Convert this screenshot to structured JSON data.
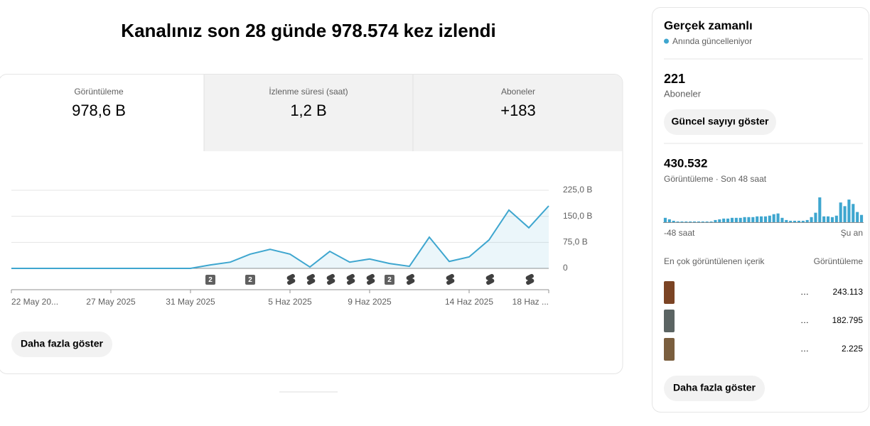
{
  "header": {
    "title": "Kanalınız son 28 günde 978.574 kez izlendi"
  },
  "tabs": [
    {
      "label": "Görüntüleme",
      "value": "978,6 B"
    },
    {
      "label": "İzlenme süresi (saat)",
      "value": "1,2 B"
    },
    {
      "label": "Aboneler",
      "value": "+183"
    }
  ],
  "chart_data": [
    {
      "type": "line",
      "color": "#3ea6cf",
      "grid": true,
      "categories": [
        "22 May 20...",
        null,
        null,
        null,
        null,
        "27 May 2025",
        null,
        null,
        null,
        "31 May 2025",
        null,
        null,
        null,
        null,
        "5 Haz 2025",
        null,
        null,
        null,
        "9 Haz 2025",
        null,
        null,
        null,
        null,
        "14 Haz 2025",
        null,
        null,
        null,
        "18 Haz ..."
      ],
      "values": [
        0,
        0,
        0,
        0,
        0,
        0,
        0,
        0,
        0,
        0,
        10,
        18,
        41,
        55,
        41,
        4,
        49,
        18,
        27,
        14,
        6,
        90,
        20,
        33,
        82,
        168,
        117,
        180
      ],
      "markers": [
        null,
        null,
        null,
        null,
        null,
        null,
        null,
        null,
        null,
        null,
        "2",
        null,
        "2",
        null,
        null,
        null,
        null,
        null,
        null,
        "2",
        null,
        null,
        null,
        null,
        null,
        null,
        null,
        null
      ],
      "ylim": [
        0,
        225
      ],
      "yticks": [
        {
          "value": 0,
          "label": "0"
        },
        {
          "value": 75,
          "label": "75,0 B"
        },
        {
          "value": 150,
          "label": "150,0 B"
        },
        {
          "value": 225,
          "label": "225,0 B"
        }
      ]
    },
    {
      "type": "bar",
      "color": "#3ea6cf",
      "categories": [
        "-48 saat",
        null,
        null,
        null,
        null,
        null,
        null,
        null,
        null,
        null,
        null,
        null,
        null,
        null,
        null,
        null,
        null,
        null,
        null,
        null,
        null,
        null,
        null,
        null,
        null,
        null,
        null,
        null,
        null,
        null,
        null,
        null,
        null,
        null,
        null,
        null,
        null,
        null,
        null,
        null,
        null,
        null,
        null,
        null,
        null,
        null,
        null,
        "Şu an"
      ],
      "values": [
        6,
        4,
        2,
        1,
        1,
        1,
        1,
        1,
        1,
        1,
        1,
        1,
        3,
        4,
        5,
        5,
        6,
        6,
        6,
        7,
        7,
        7,
        8,
        8,
        8,
        9,
        11,
        12,
        6,
        3,
        2,
        2,
        2,
        2,
        3,
        7,
        13,
        34,
        8,
        8,
        7,
        9,
        27,
        22,
        31,
        25,
        14,
        10
      ]
    }
  ],
  "more_button": "Daha fazla göster",
  "realtime": {
    "title": "Gerçek zamanlı",
    "status": "Anında güncelleniyor",
    "subscribers": {
      "value": "221",
      "label": "Aboneler",
      "button": "Güncel sayıyı göster"
    },
    "views": {
      "value": "430.532",
      "label": "Görüntüleme · Son 48 saat"
    },
    "top_content": {
      "header": "En çok görüntülenen içerik",
      "metric": "Görüntüleme",
      "rows": [
        {
          "title": "…",
          "views": "243.113",
          "color": "#7b4424"
        },
        {
          "title": "…",
          "views": "182.795",
          "color": "#5b6463"
        },
        {
          "title": "…",
          "views": "2.225",
          "color": "#7a5e3e"
        }
      ]
    },
    "button": "Daha fazla göster"
  }
}
